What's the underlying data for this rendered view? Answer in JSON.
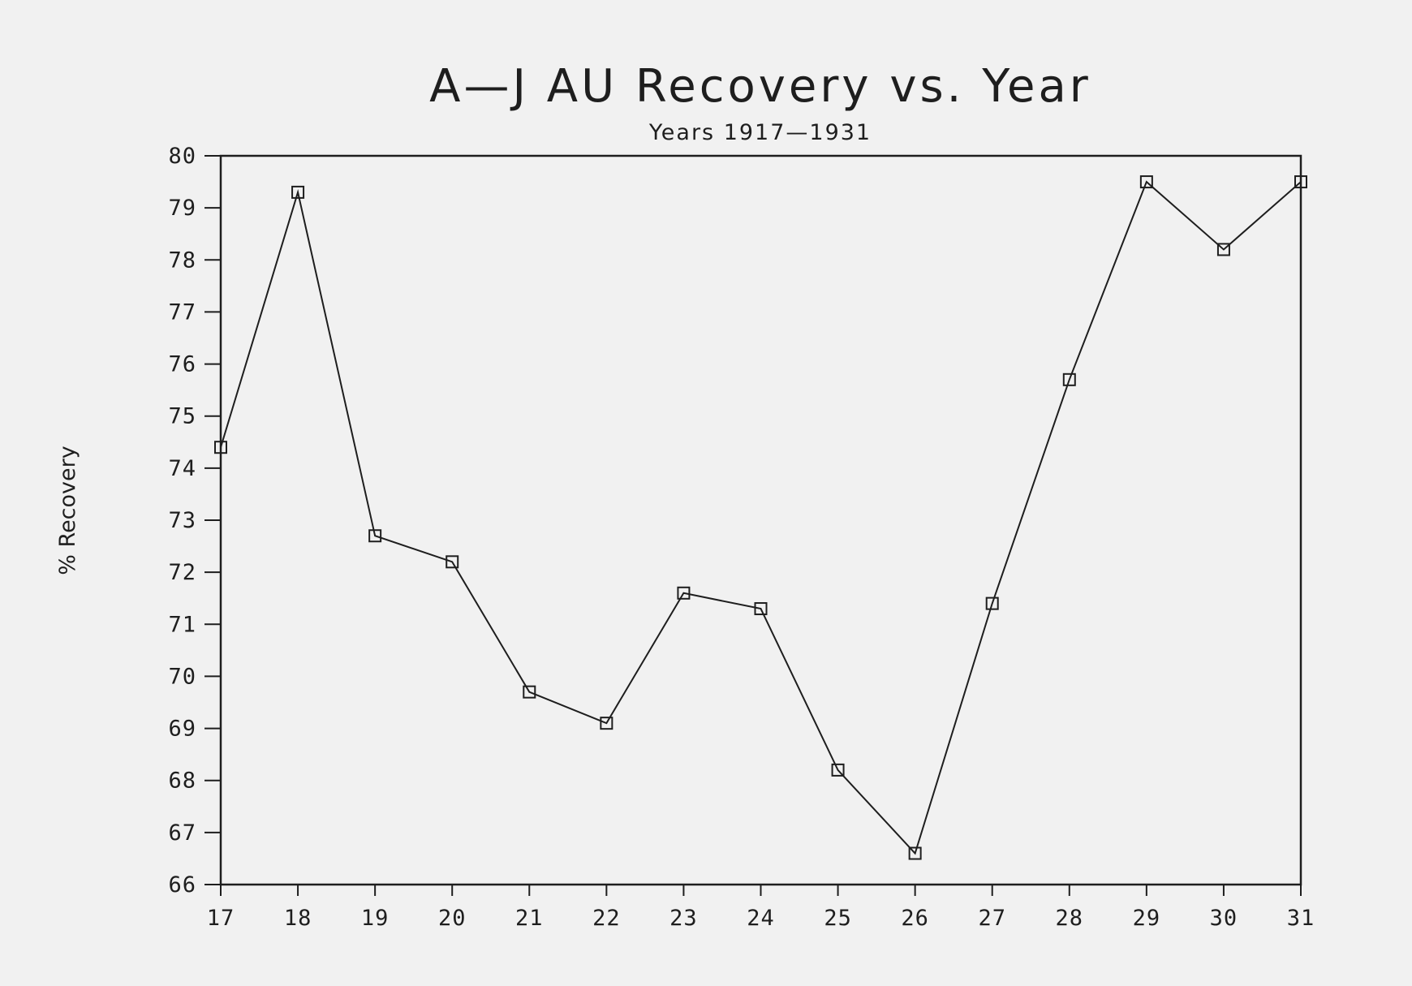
{
  "chart_data": {
    "type": "line",
    "title": "A—J AU Recovery vs. Year",
    "subtitle": "Years 1917—1931",
    "xlabel": "",
    "ylabel": "% Recovery",
    "x": [
      17,
      18,
      19,
      20,
      21,
      22,
      23,
      24,
      25,
      26,
      27,
      28,
      29,
      30,
      31
    ],
    "x_tick_labels": [
      "17",
      "18",
      "19",
      "20",
      "21",
      "22",
      "23",
      "24",
      "25",
      "26",
      "27",
      "28",
      "29",
      "30",
      "31"
    ],
    "y_tick_labels": [
      "80",
      "79",
      "78",
      "77",
      "76",
      "75",
      "74",
      "73",
      "72",
      "71",
      "70",
      "69",
      "68",
      "67",
      "66"
    ],
    "xlim": [
      17,
      31
    ],
    "ylim": [
      66,
      80
    ],
    "grid": false,
    "marker": "open-square",
    "series": [
      {
        "values": [
          74.4,
          79.3,
          72.7,
          72.2,
          69.7,
          69.1,
          71.6,
          71.3,
          68.2,
          66.6,
          71.4,
          75.7,
          79.5,
          78.2,
          79.5
        ]
      }
    ]
  },
  "colors": {
    "ink": "#1e1e1e",
    "background": "#f1f1f1"
  }
}
